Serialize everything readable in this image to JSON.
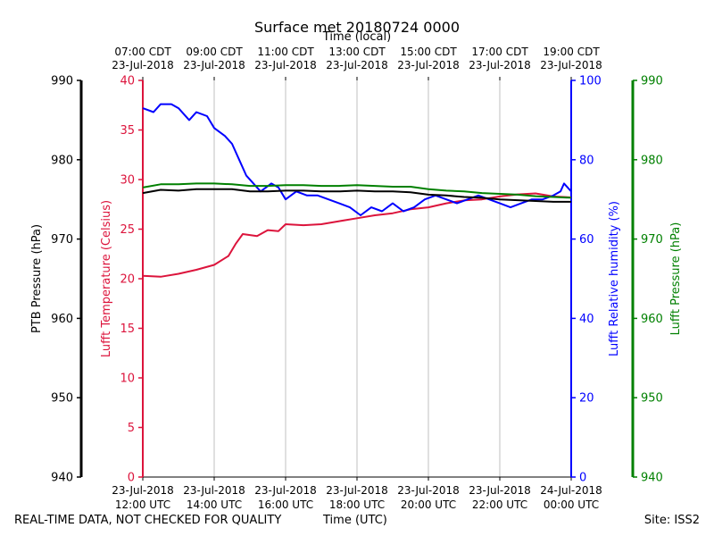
{
  "chart_data": {
    "type": "line",
    "title": "Surface met 20180724 0000",
    "top_axis_label": "Time (local)",
    "bottom_axis_label": "Time (UTC)",
    "footer_left": "REAL-TIME DATA, NOT CHECKED FOR QUALITY",
    "footer_right": "Site: ISS2",
    "x_range_hours": [
      12,
      24
    ],
    "x_ticks_utc": [
      {
        "hour": 12,
        "line1": "23-Jul-2018",
        "line2": "12:00 UTC"
      },
      {
        "hour": 14,
        "line1": "23-Jul-2018",
        "line2": "14:00 UTC"
      },
      {
        "hour": 16,
        "line1": "23-Jul-2018",
        "line2": "16:00 UTC"
      },
      {
        "hour": 18,
        "line1": "23-Jul-2018",
        "line2": "18:00 UTC"
      },
      {
        "hour": 20,
        "line1": "23-Jul-2018",
        "line2": "20:00 UTC"
      },
      {
        "hour": 22,
        "line1": "23-Jul-2018",
        "line2": "22:00 UTC"
      },
      {
        "hour": 24,
        "line1": "24-Jul-2018",
        "line2": "00:00 UTC"
      }
    ],
    "x_ticks_local": [
      {
        "hour": 12,
        "line1": "07:00 CDT",
        "line2": "23-Jul-2018"
      },
      {
        "hour": 14,
        "line1": "09:00 CDT",
        "line2": "23-Jul-2018"
      },
      {
        "hour": 16,
        "line1": "11:00 CDT",
        "line2": "23-Jul-2018"
      },
      {
        "hour": 18,
        "line1": "13:00 CDT",
        "line2": "23-Jul-2018"
      },
      {
        "hour": 20,
        "line1": "15:00 CDT",
        "line2": "23-Jul-2018"
      },
      {
        "hour": 22,
        "line1": "17:00 CDT",
        "line2": "23-Jul-2018"
      },
      {
        "hour": 24,
        "line1": "19:00 CDT",
        "line2": "23-Jul-2018"
      }
    ],
    "axes": {
      "ptb_pressure": {
        "label": "PTB Pressure (hPa)",
        "range": [
          940,
          990
        ],
        "ticks": [
          940,
          950,
          960,
          970,
          980,
          990
        ],
        "color": "#000000"
      },
      "temperature": {
        "label": "Lufft Temperature (Celsius)",
        "range": [
          0,
          40
        ],
        "ticks": [
          0,
          5,
          10,
          15,
          20,
          25,
          30,
          35,
          40
        ],
        "color": "#dc143c"
      },
      "humidity": {
        "label": "Lufft Relative humidity (%)",
        "range": [
          0,
          100
        ],
        "ticks": [
          0,
          20,
          40,
          60,
          80,
          100
        ],
        "color": "#0000ff"
      },
      "lufft_pressure": {
        "label": "Lufft Pressure (hPa)",
        "range": [
          940,
          990
        ],
        "ticks": [
          940,
          950,
          960,
          970,
          980,
          990
        ],
        "color": "#008000"
      }
    },
    "series": [
      {
        "name": "Lufft Temperature",
        "axis": "temperature",
        "color": "#dc143c",
        "points": [
          [
            12.0,
            20.3
          ],
          [
            12.5,
            20.2
          ],
          [
            13.0,
            20.5
          ],
          [
            13.5,
            20.9
          ],
          [
            14.0,
            21.4
          ],
          [
            14.4,
            22.3
          ],
          [
            14.6,
            23.5
          ],
          [
            14.8,
            24.5
          ],
          [
            15.2,
            24.3
          ],
          [
            15.5,
            24.9
          ],
          [
            15.8,
            24.8
          ],
          [
            16.0,
            25.5
          ],
          [
            16.5,
            25.4
          ],
          [
            17.0,
            25.5
          ],
          [
            17.5,
            25.8
          ],
          [
            18.0,
            26.1
          ],
          [
            18.5,
            26.4
          ],
          [
            19.0,
            26.6
          ],
          [
            19.5,
            27.0
          ],
          [
            20.0,
            27.2
          ],
          [
            20.5,
            27.6
          ],
          [
            21.0,
            27.9
          ],
          [
            21.5,
            28.0
          ],
          [
            22.0,
            28.3
          ],
          [
            22.5,
            28.5
          ],
          [
            23.0,
            28.6
          ],
          [
            23.5,
            28.3
          ],
          [
            24.0,
            28.2
          ]
        ]
      },
      {
        "name": "Lufft Relative humidity",
        "axis": "humidity",
        "color": "#0000ff",
        "points": [
          [
            12.0,
            93
          ],
          [
            12.3,
            92
          ],
          [
            12.5,
            94
          ],
          [
            12.8,
            94
          ],
          [
            13.0,
            93
          ],
          [
            13.3,
            90
          ],
          [
            13.5,
            92
          ],
          [
            13.8,
            91
          ],
          [
            14.0,
            88
          ],
          [
            14.3,
            86
          ],
          [
            14.5,
            84
          ],
          [
            14.7,
            80
          ],
          [
            14.9,
            76
          ],
          [
            15.1,
            74
          ],
          [
            15.3,
            72
          ],
          [
            15.6,
            74
          ],
          [
            15.8,
            73
          ],
          [
            16.0,
            70
          ],
          [
            16.3,
            72
          ],
          [
            16.6,
            71
          ],
          [
            16.9,
            71
          ],
          [
            17.2,
            70
          ],
          [
            17.5,
            69
          ],
          [
            17.8,
            68
          ],
          [
            18.1,
            66
          ],
          [
            18.4,
            68
          ],
          [
            18.7,
            67
          ],
          [
            19.0,
            69
          ],
          [
            19.3,
            67
          ],
          [
            19.6,
            68
          ],
          [
            19.9,
            70
          ],
          [
            20.2,
            71
          ],
          [
            20.5,
            70
          ],
          [
            20.8,
            69
          ],
          [
            21.1,
            70
          ],
          [
            21.4,
            71
          ],
          [
            21.7,
            70
          ],
          [
            22.0,
            69
          ],
          [
            22.3,
            68
          ],
          [
            22.6,
            69
          ],
          [
            22.9,
            70
          ],
          [
            23.2,
            70
          ],
          [
            23.5,
            71
          ],
          [
            23.7,
            72
          ],
          [
            23.8,
            74
          ],
          [
            24.0,
            72
          ]
        ]
      },
      {
        "name": "PTB Pressure",
        "axis": "ptb_pressure",
        "color": "#000000",
        "points": [
          [
            12.0,
            975.8
          ],
          [
            12.5,
            976.2
          ],
          [
            13.0,
            976.1
          ],
          [
            13.5,
            976.3
          ],
          [
            14.0,
            976.3
          ],
          [
            14.5,
            976.3
          ],
          [
            15.0,
            976.0
          ],
          [
            15.5,
            976.0
          ],
          [
            16.0,
            976.1
          ],
          [
            16.5,
            976.1
          ],
          [
            17.0,
            976.0
          ],
          [
            17.5,
            976.0
          ],
          [
            18.0,
            976.1
          ],
          [
            18.5,
            976.0
          ],
          [
            19.0,
            976.0
          ],
          [
            19.5,
            975.9
          ],
          [
            20.0,
            975.6
          ],
          [
            20.5,
            975.5
          ],
          [
            21.0,
            975.3
          ],
          [
            21.5,
            975.2
          ],
          [
            22.0,
            975.0
          ],
          [
            22.5,
            974.9
          ],
          [
            23.0,
            974.8
          ],
          [
            23.5,
            974.7
          ],
          [
            24.0,
            974.7
          ]
        ]
      },
      {
        "name": "Lufft Pressure",
        "axis": "lufft_pressure",
        "color": "#008000",
        "points": [
          [
            12.0,
            976.5
          ],
          [
            12.5,
            976.9
          ],
          [
            13.0,
            976.9
          ],
          [
            13.5,
            977.0
          ],
          [
            14.0,
            977.0
          ],
          [
            14.5,
            976.9
          ],
          [
            15.0,
            976.7
          ],
          [
            15.5,
            976.7
          ],
          [
            16.0,
            976.8
          ],
          [
            16.5,
            976.8
          ],
          [
            17.0,
            976.7
          ],
          [
            17.5,
            976.7
          ],
          [
            18.0,
            976.8
          ],
          [
            18.5,
            976.7
          ],
          [
            19.0,
            976.6
          ],
          [
            19.5,
            976.6
          ],
          [
            20.0,
            976.3
          ],
          [
            20.5,
            976.1
          ],
          [
            21.0,
            976.0
          ],
          [
            21.5,
            975.8
          ],
          [
            22.0,
            975.7
          ],
          [
            22.5,
            975.6
          ],
          [
            23.0,
            975.4
          ],
          [
            23.5,
            975.3
          ],
          [
            24.0,
            975.2
          ]
        ]
      }
    ]
  }
}
